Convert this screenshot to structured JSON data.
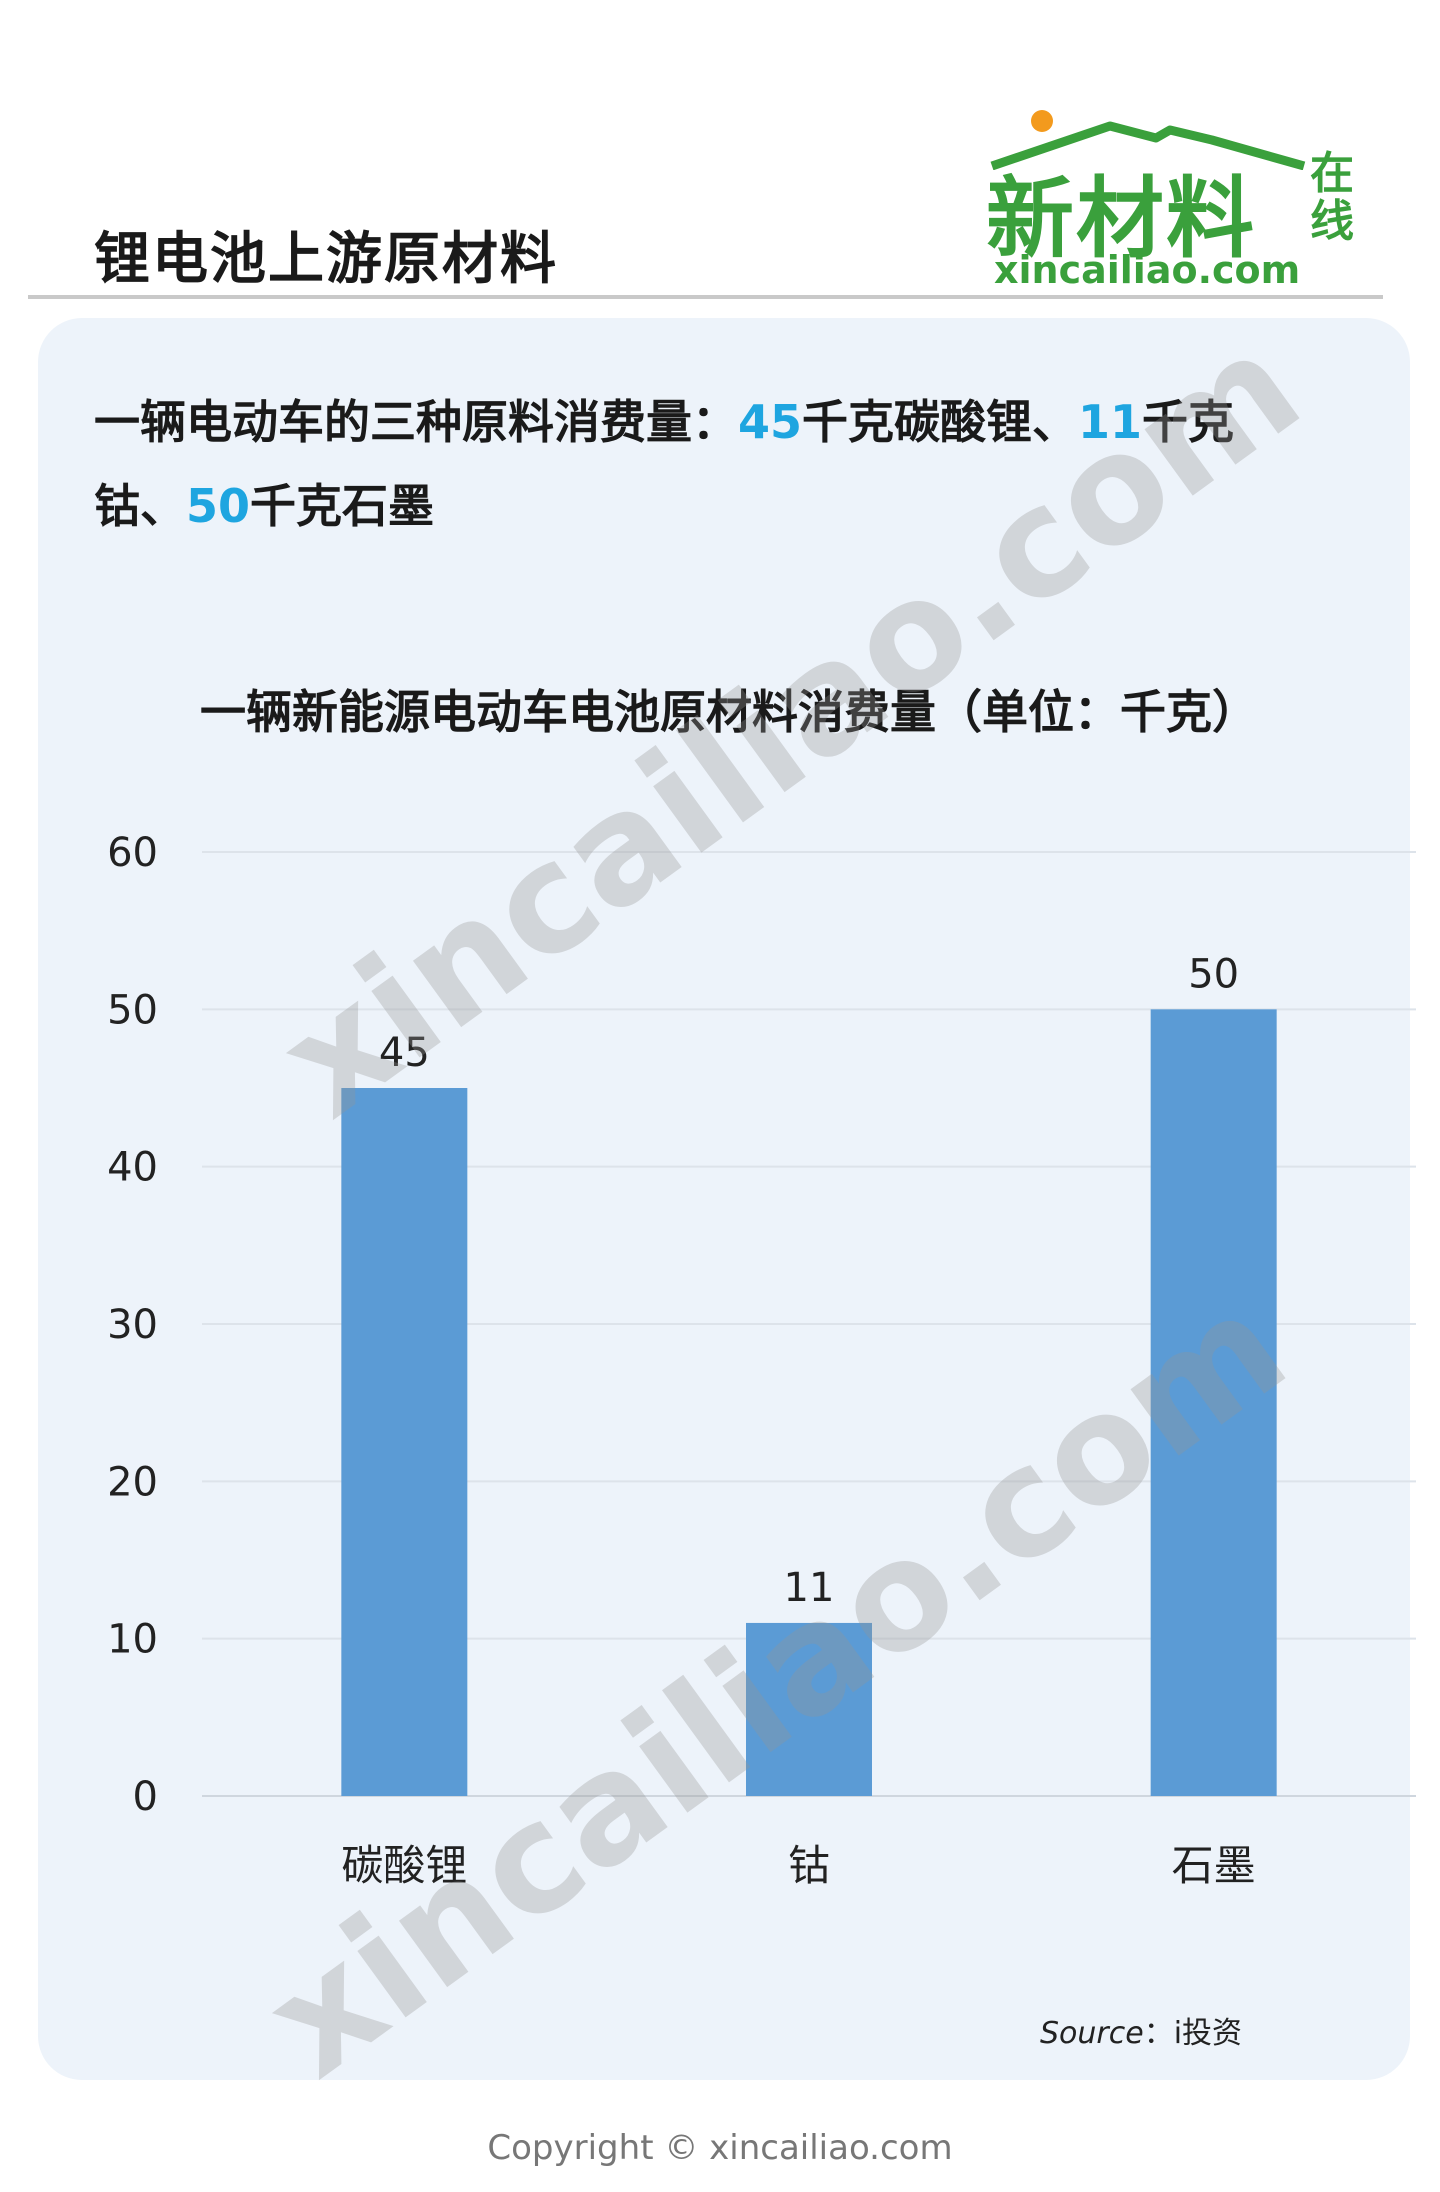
{
  "header": {
    "title": "锂电池上游原材料",
    "logo": {
      "main": "新材料",
      "side": "在线",
      "domain": "xincailiao.com",
      "brand_color": "#3aa03c",
      "dot_color": "#f39a1d"
    }
  },
  "intro": {
    "part1": "一辆电动车的三种原料消费量：",
    "v1": "45",
    "part2": "千克碳酸锂、",
    "v2": "11",
    "part3": "千克钴、",
    "v3": "50",
    "part4": "千克石墨",
    "highlight_color": "#1ea5e0"
  },
  "chart_data": {
    "type": "bar",
    "title": "一辆新能源电动车电池原材料消费量（单位：千克）",
    "categories": [
      "碳酸锂",
      "钴",
      "石墨"
    ],
    "values": [
      45,
      11,
      50
    ],
    "ylim": [
      0,
      60
    ],
    "yticks": [
      0,
      10,
      20,
      30,
      40,
      50,
      60
    ],
    "grid": true,
    "bar_color": "#5b9bd5"
  },
  "watermark": "xincailiao.com",
  "source": {
    "label": "Source",
    "sep": "：",
    "value": "i投资"
  },
  "copyright": "Copyright © xincailiao.com"
}
